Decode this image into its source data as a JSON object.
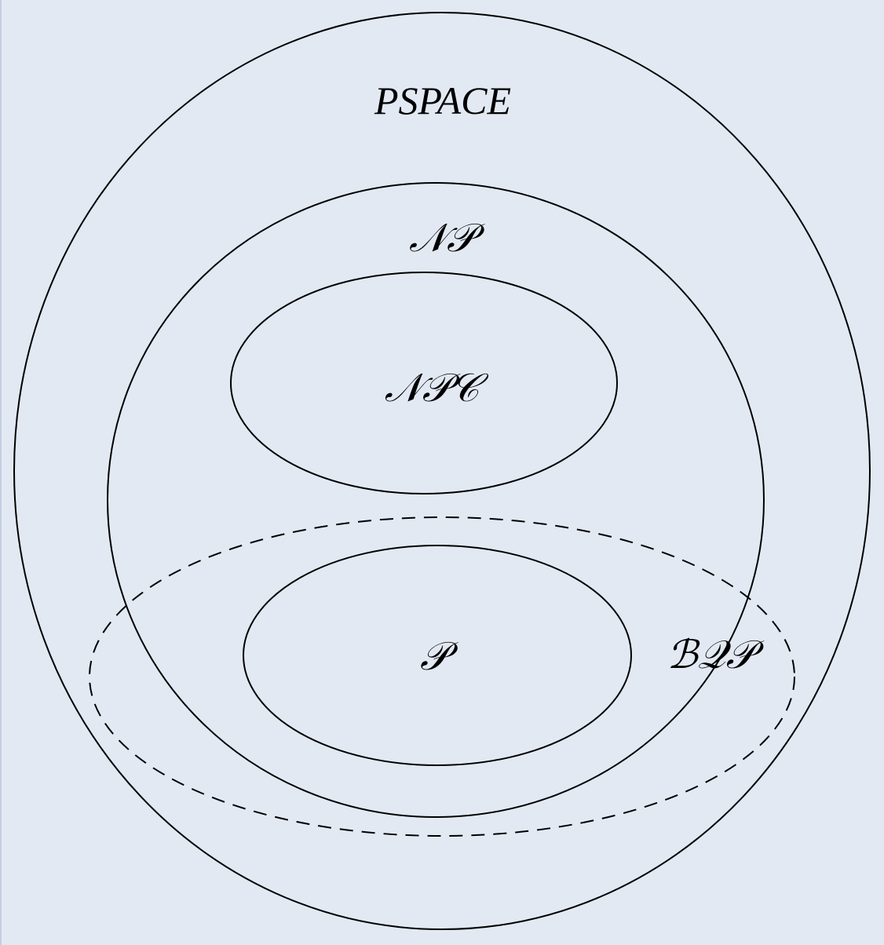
{
  "diagram": {
    "colors": {
      "background": "#e2e9f3",
      "stroke": "#000000"
    },
    "labels": {
      "pspace": "PSPACE",
      "np": "𝒩𝒫",
      "npc": "𝒩𝒫𝒞",
      "p": "𝒫",
      "bqp": "ℬ𝒬𝒫"
    }
  }
}
